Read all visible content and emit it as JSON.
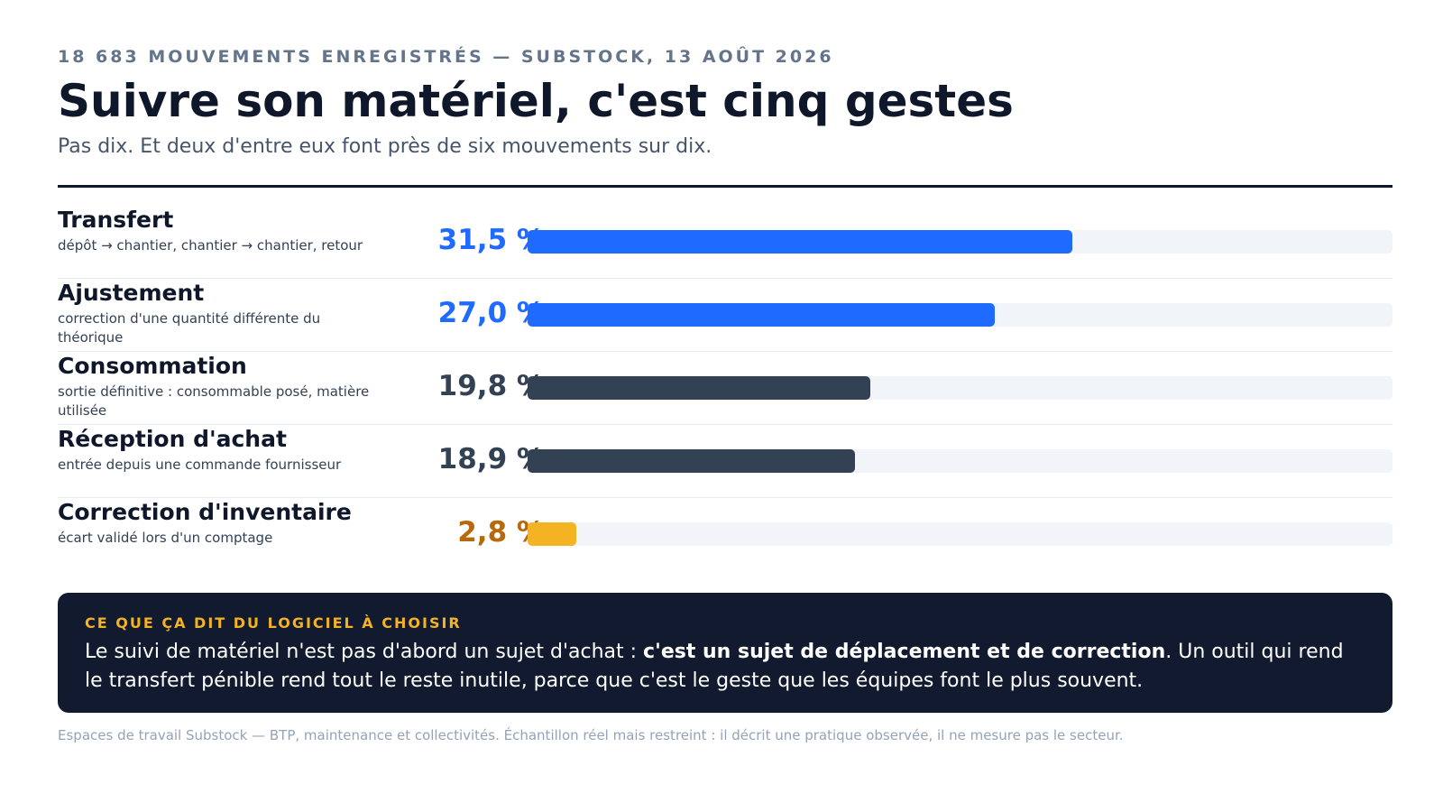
{
  "kicker": "18 683 MOUVEMENTS ENREGISTRÉS — SUBSTOCK, 13 AOÛT 2026",
  "title": "Suivre son matériel, c'est cinq gestes",
  "subtitle": "Pas dix. Et deux d'entre eux font près de six mouvements sur dix.",
  "chart_data": {
    "type": "bar",
    "orientation": "horizontal",
    "xlim": [
      0,
      50
    ],
    "categories": [
      "Transfert",
      "Ajustement",
      "Consommation",
      "Réception d'achat",
      "Correction d'inventaire"
    ],
    "descriptions": [
      "dépôt → chantier, chantier → chantier, retour",
      "correction d'une quantité différente du théorique",
      "sortie définitive : consommable posé, matière utilisée",
      "entrée depuis une commande fournisseur",
      "écart validé lors d'un comptage"
    ],
    "values": [
      31.5,
      27.0,
      19.8,
      18.9,
      2.8
    ],
    "value_labels": [
      "31,5 %",
      "27,0 %",
      "19,8 %",
      "18,9 %",
      "2,8 %"
    ],
    "colors": [
      "#1f6bff",
      "#1f6bff",
      "#334155",
      "#334155",
      "#f4b323"
    ],
    "label_colors": [
      "#1f6bff",
      "#1f6bff",
      "#334155",
      "#334155",
      "#b8690a"
    ],
    "track_color": "#f1f4f8"
  },
  "insight": {
    "kicker": "CE QUE ÇA DIT DU LOGICIEL À CHOISIR",
    "text_before": "Le suivi de matériel n'est pas d'abord un sujet d'achat : ",
    "text_bold": "c'est un sujet de déplacement et de correction",
    "text_after": ". Un outil qui rend le transfert pénible rend tout le reste inutile, parce que c'est le geste que les équipes font le plus souvent."
  },
  "source": "Espaces de travail Substock — BTP, maintenance et collectivités. Échantillon réel mais restreint : il décrit une pratique observée, il ne mesure pas le secteur."
}
